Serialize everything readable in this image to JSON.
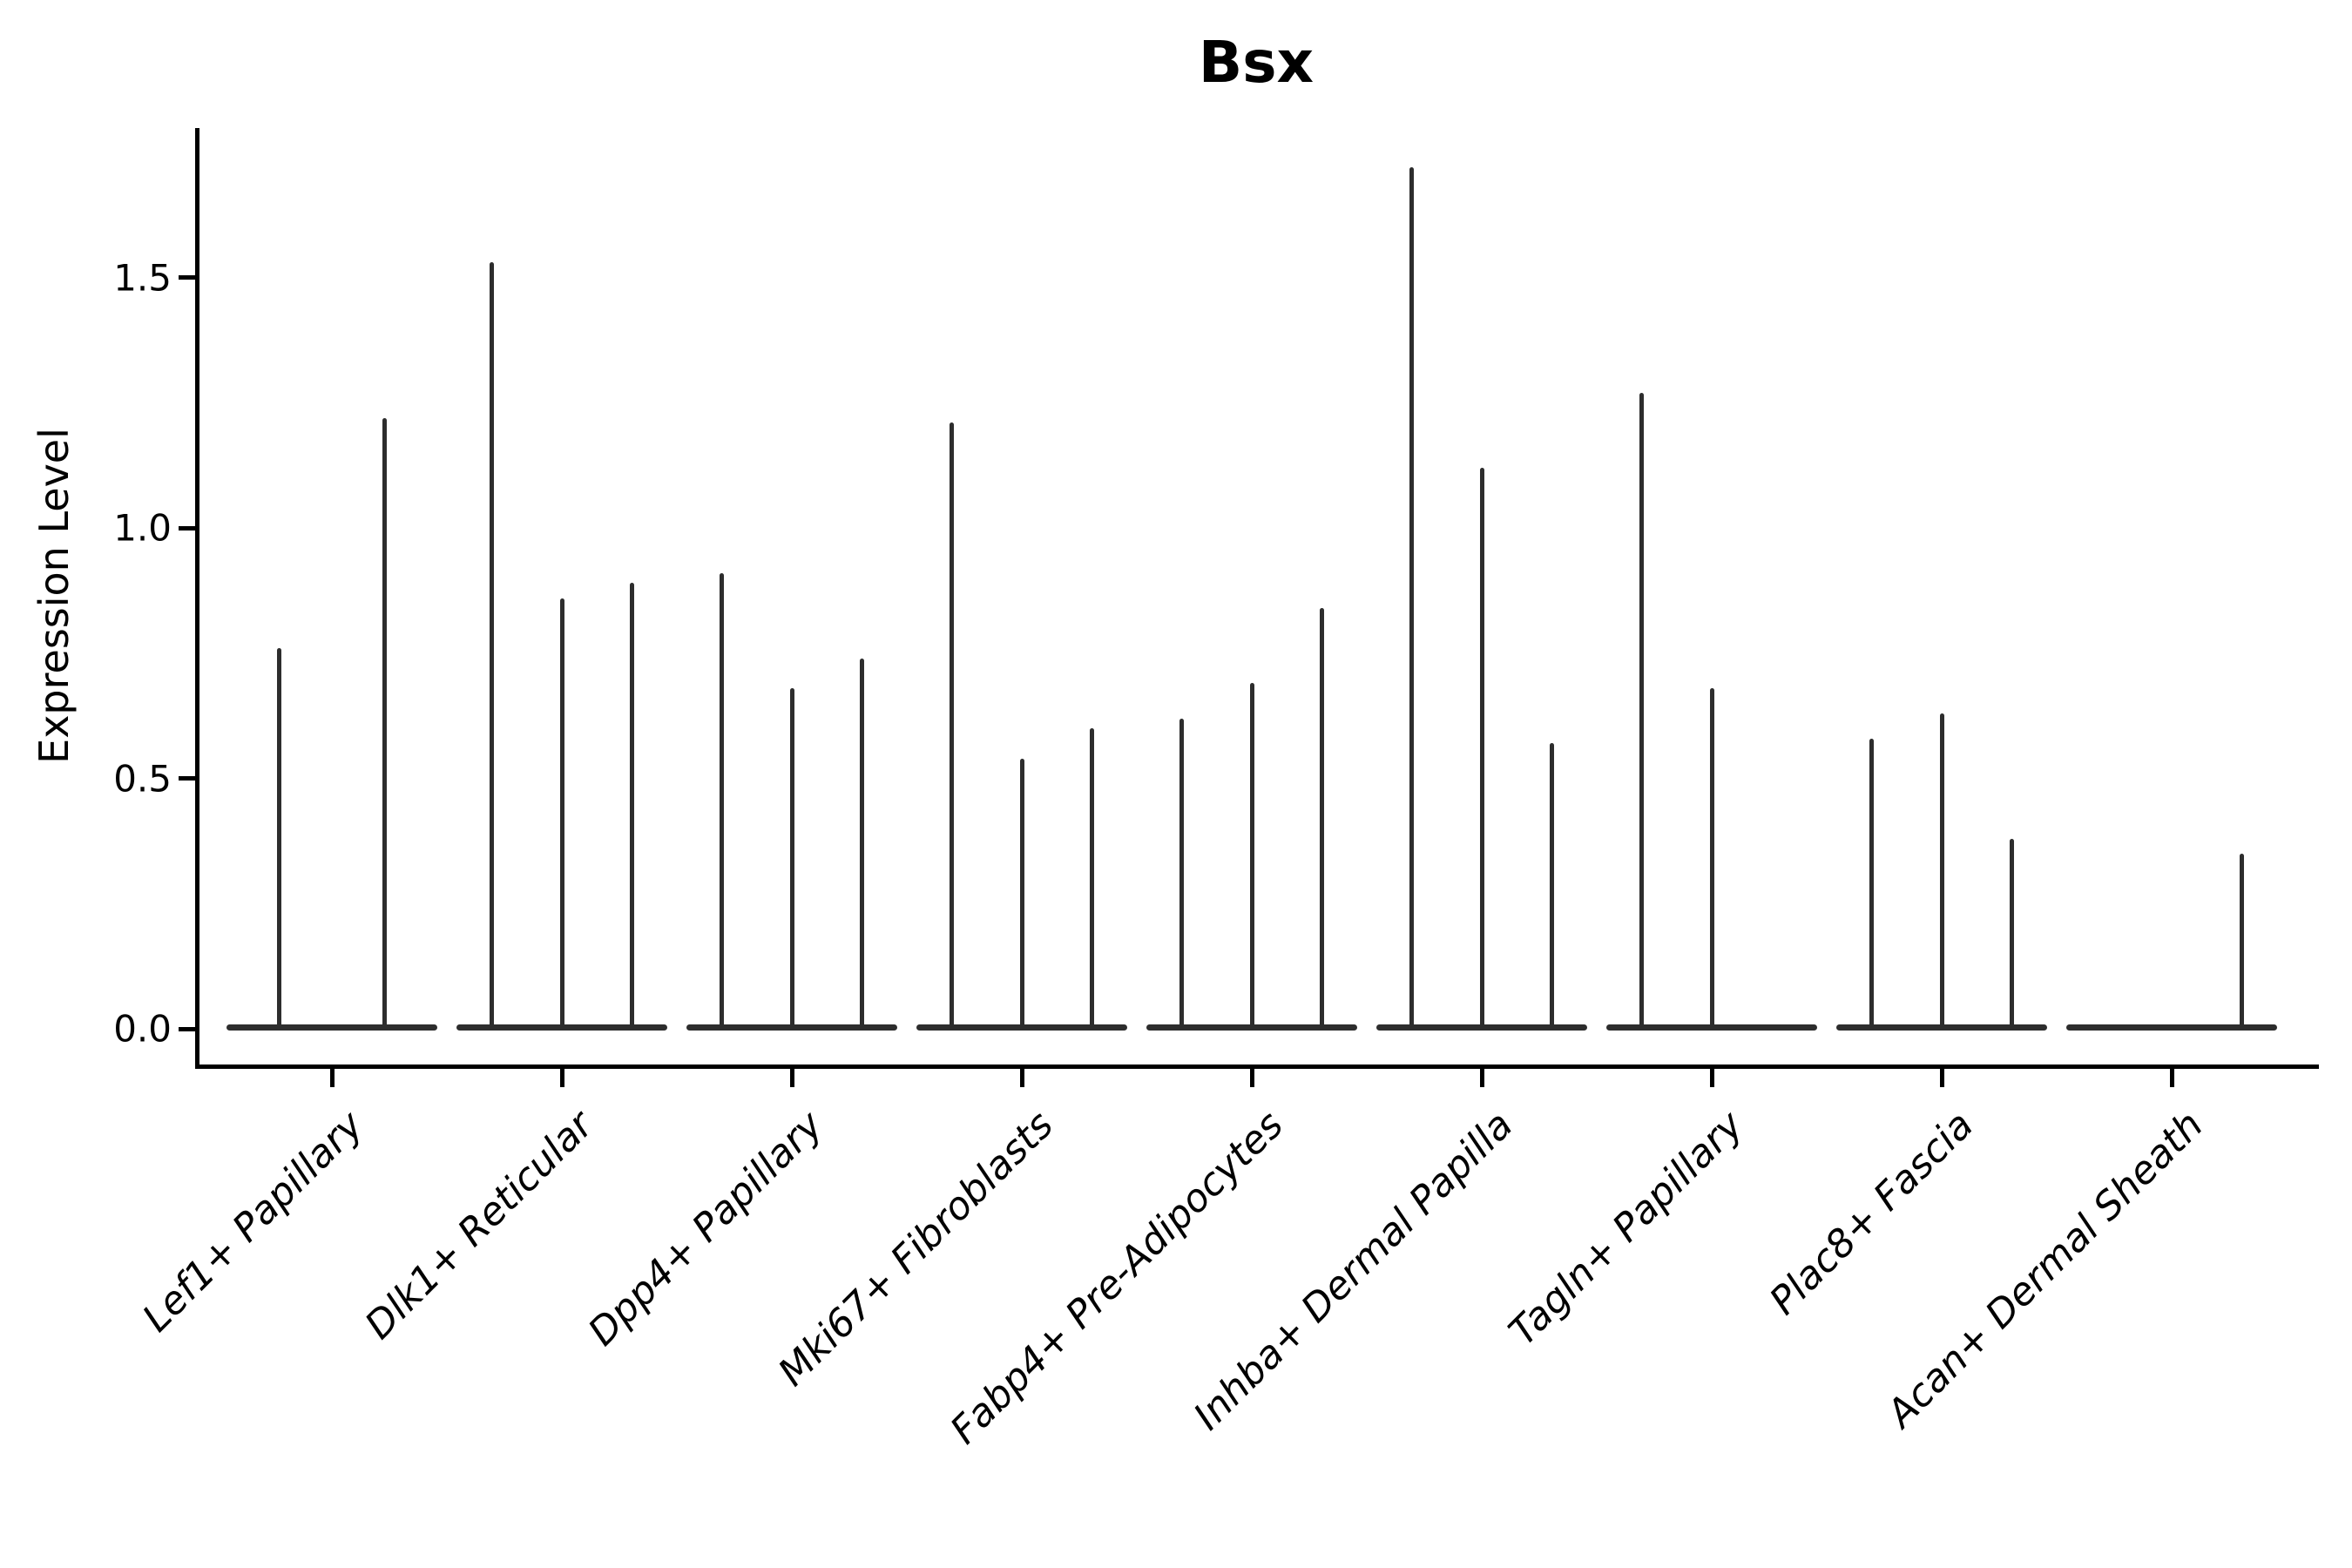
{
  "figure": {
    "title": "Bsx",
    "ylabel": "Expression Level"
  },
  "colors": {
    "violin": "#2d2d2d",
    "axis": "#000000",
    "text": "#000000",
    "background": "#ffffff"
  },
  "chart_data": {
    "type": "violin",
    "title": "Bsx",
    "xlabel": "",
    "ylabel": "Expression Level",
    "ylim": [
      -0.07,
      1.8
    ],
    "ytick_labels": [
      "0.0",
      "0.5",
      "1.0",
      "1.5"
    ],
    "ytick_values": [
      0.0,
      0.5,
      1.0,
      1.5
    ],
    "grid": false,
    "legend": null,
    "categories": [
      "Lef1+ Papillary",
      "Dlk1+ Reticular",
      "Dpp4+ Papillary",
      "Mki67+ Fibroblasts",
      "Fabp4+ Pre-Adipocytes",
      "Inhba+ Dermal Papilla",
      "Tagln+ Papillary",
      "Plac8+ Fascia",
      "Acan+ Dermal Sheath"
    ],
    "series": [
      {
        "category": "Lef1+ Papillary",
        "violin_max": [
          0.76,
          1.22
        ]
      },
      {
        "category": "Dlk1+ Reticular",
        "violin_max": [
          1.53,
          0.86,
          0.89
        ]
      },
      {
        "category": "Dpp4+ Papillary",
        "violin_max": [
          0.91,
          0.68,
          0.74
        ]
      },
      {
        "category": "Mki67+ Fibroblasts",
        "violin_max": [
          1.21,
          0.54,
          0.6
        ]
      },
      {
        "category": "Fabp4+ Pre-Adipocytes",
        "violin_max": [
          0.62,
          0.69,
          0.84
        ]
      },
      {
        "category": "Inhba+ Dermal Papilla",
        "violin_max": [
          1.72,
          1.12,
          0.57
        ]
      },
      {
        "category": "Tagln+ Papillary",
        "violin_max": [
          1.27,
          0.68,
          0.0
        ]
      },
      {
        "category": "Plac8+ Fascia",
        "violin_max": [
          0.58,
          0.63,
          0.38
        ]
      },
      {
        "category": "Acan+ Dermal Sheath",
        "violin_max": [
          0.0,
          0.0,
          0.35
        ]
      }
    ]
  }
}
